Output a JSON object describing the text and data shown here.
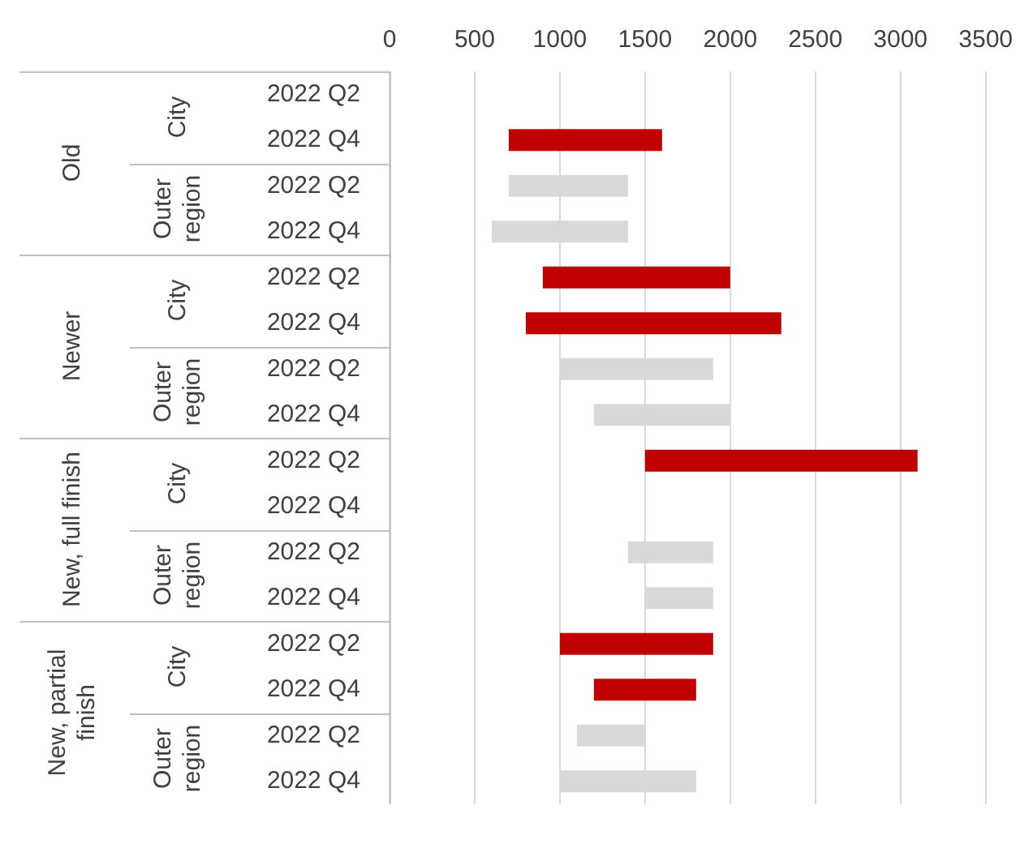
{
  "chart_data": {
    "type": "bar",
    "orientation": "horizontal",
    "categories": [
      "2022 Q2",
      "2022 Q4",
      "2022 Q2",
      "2022 Q4",
      "2022 Q2",
      "2022 Q4",
      "2022 Q2",
      "2022 Q4",
      "2022 Q2",
      "2022 Q4",
      "2022 Q2",
      "2022 Q4",
      "2022 Q2",
      "2022 Q4",
      "2022 Q2",
      "2022 Q4"
    ],
    "base": [
      null,
      700,
      700,
      600,
      900,
      800,
      1000,
      1200,
      1500,
      null,
      1400,
      1500,
      1000,
      1200,
      1100,
      1000
    ],
    "values": [
      null,
      900,
      700,
      800,
      1100,
      1500,
      900,
      800,
      1600,
      null,
      500,
      400,
      900,
      600,
      400,
      800
    ],
    "colors": [
      "#c00000",
      "#c00000",
      "#d9d9d9",
      "#d9d9d9",
      "#c00000",
      "#c00000",
      "#d9d9d9",
      "#d9d9d9",
      "#c00000",
      "#c00000",
      "#d9d9d9",
      "#d9d9d9",
      "#c00000",
      "#c00000",
      "#d9d9d9",
      "#d9d9d9"
    ],
    "annotations": [
      "Old",
      "City",
      "Outer region",
      "Newer",
      "City",
      "Outer region",
      "New, full finish",
      "City",
      "Outer region",
      "New, partial finish",
      "City",
      "Outer region"
    ],
    "xlim": [
      0,
      3500
    ],
    "xticks": [
      0,
      500,
      1000,
      1500,
      2000,
      2500,
      3000,
      3500
    ],
    "grid": "x",
    "legend": false
  }
}
